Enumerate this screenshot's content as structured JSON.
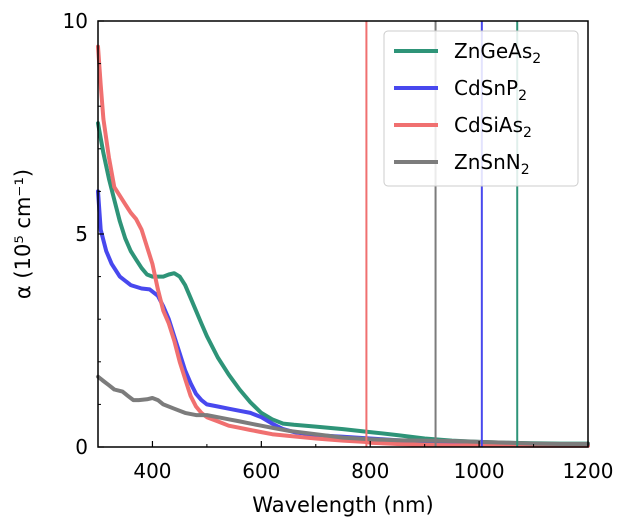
{
  "chart_data": {
    "type": "line",
    "title": "",
    "xlabel": "Wavelength (nm)",
    "ylabel": "α (10⁵ cm⁻¹)",
    "xlim": [
      300,
      1200
    ],
    "ylim": [
      0,
      10
    ],
    "xticks": [
      400,
      600,
      800,
      1000,
      1200
    ],
    "yticks": [
      0,
      5,
      10
    ],
    "grid": false,
    "legend_position": "top-right",
    "series": [
      {
        "name": "ZnGeAs",
        "subscript": "2",
        "color": "#2e9478",
        "band_edge_nm": 1070,
        "points": [
          [
            300,
            7.6
          ],
          [
            310,
            6.9
          ],
          [
            320,
            6.3
          ],
          [
            330,
            5.8
          ],
          [
            340,
            5.3
          ],
          [
            350,
            4.9
          ],
          [
            360,
            4.6
          ],
          [
            370,
            4.4
          ],
          [
            380,
            4.2
          ],
          [
            390,
            4.05
          ],
          [
            400,
            4.0
          ],
          [
            410,
            4.0
          ],
          [
            420,
            4.0
          ],
          [
            430,
            4.05
          ],
          [
            440,
            4.08
          ],
          [
            450,
            4.0
          ],
          [
            460,
            3.8
          ],
          [
            470,
            3.5
          ],
          [
            480,
            3.2
          ],
          [
            490,
            2.9
          ],
          [
            500,
            2.6
          ],
          [
            520,
            2.1
          ],
          [
            540,
            1.7
          ],
          [
            560,
            1.35
          ],
          [
            580,
            1.05
          ],
          [
            600,
            0.8
          ],
          [
            620,
            0.65
          ],
          [
            640,
            0.55
          ],
          [
            660,
            0.52
          ],
          [
            700,
            0.48
          ],
          [
            750,
            0.42
          ],
          [
            800,
            0.35
          ],
          [
            850,
            0.28
          ],
          [
            900,
            0.2
          ],
          [
            950,
            0.15
          ],
          [
            1000,
            0.12
          ],
          [
            1050,
            0.1
          ],
          [
            1100,
            0.09
          ],
          [
            1150,
            0.08
          ],
          [
            1200,
            0.08
          ]
        ]
      },
      {
        "name": "CdSnP",
        "subscript": "2",
        "color": "#4848ee",
        "band_edge_nm": 1005,
        "points": [
          [
            300,
            6.0
          ],
          [
            305,
            5.1
          ],
          [
            315,
            4.6
          ],
          [
            325,
            4.3
          ],
          [
            340,
            4.0
          ],
          [
            360,
            3.8
          ],
          [
            380,
            3.72
          ],
          [
            395,
            3.7
          ],
          [
            410,
            3.55
          ],
          [
            420,
            3.3
          ],
          [
            430,
            3.0
          ],
          [
            440,
            2.6
          ],
          [
            450,
            2.2
          ],
          [
            460,
            1.8
          ],
          [
            470,
            1.5
          ],
          [
            480,
            1.25
          ],
          [
            490,
            1.1
          ],
          [
            500,
            1.0
          ],
          [
            520,
            0.95
          ],
          [
            540,
            0.9
          ],
          [
            560,
            0.85
          ],
          [
            580,
            0.8
          ],
          [
            600,
            0.7
          ],
          [
            620,
            0.55
          ],
          [
            640,
            0.42
          ],
          [
            660,
            0.35
          ],
          [
            700,
            0.28
          ],
          [
            750,
            0.24
          ],
          [
            800,
            0.2
          ],
          [
            850,
            0.16
          ],
          [
            900,
            0.12
          ],
          [
            950,
            0.09
          ],
          [
            1000,
            0.07
          ],
          [
            1050,
            0.06
          ],
          [
            1100,
            0.05
          ],
          [
            1150,
            0.05
          ],
          [
            1200,
            0.05
          ]
        ]
      },
      {
        "name": "CdSiAs",
        "subscript": "2",
        "color": "#f07070",
        "band_edge_nm": 793,
        "points": [
          [
            300,
            9.4
          ],
          [
            305,
            8.5
          ],
          [
            310,
            7.7
          ],
          [
            320,
            6.8
          ],
          [
            330,
            6.1
          ],
          [
            340,
            5.9
          ],
          [
            350,
            5.7
          ],
          [
            360,
            5.5
          ],
          [
            370,
            5.35
          ],
          [
            380,
            5.1
          ],
          [
            390,
            4.7
          ],
          [
            400,
            4.3
          ],
          [
            410,
            3.7
          ],
          [
            420,
            3.2
          ],
          [
            430,
            2.9
          ],
          [
            440,
            2.5
          ],
          [
            450,
            2.0
          ],
          [
            460,
            1.6
          ],
          [
            470,
            1.2
          ],
          [
            480,
            0.95
          ],
          [
            490,
            0.8
          ],
          [
            500,
            0.7
          ],
          [
            520,
            0.6
          ],
          [
            540,
            0.5
          ],
          [
            560,
            0.45
          ],
          [
            580,
            0.4
          ],
          [
            600,
            0.35
          ],
          [
            620,
            0.3
          ],
          [
            650,
            0.26
          ],
          [
            700,
            0.2
          ],
          [
            750,
            0.15
          ],
          [
            790,
            0.12
          ],
          [
            800,
            0.1
          ],
          [
            850,
            0.07
          ],
          [
            900,
            0.05
          ],
          [
            950,
            0.04
          ],
          [
            1000,
            0.04
          ],
          [
            1100,
            0.03
          ],
          [
            1200,
            0.03
          ]
        ]
      },
      {
        "name": "ZnSnN",
        "subscript": "2",
        "color": "#7c7c7c",
        "band_edge_nm": 920,
        "points": [
          [
            300,
            1.65
          ],
          [
            310,
            1.55
          ],
          [
            320,
            1.45
          ],
          [
            330,
            1.35
          ],
          [
            345,
            1.3
          ],
          [
            355,
            1.2
          ],
          [
            365,
            1.1
          ],
          [
            375,
            1.1
          ],
          [
            390,
            1.12
          ],
          [
            400,
            1.15
          ],
          [
            410,
            1.1
          ],
          [
            420,
            1.0
          ],
          [
            440,
            0.9
          ],
          [
            460,
            0.8
          ],
          [
            480,
            0.75
          ],
          [
            500,
            0.75
          ],
          [
            520,
            0.7
          ],
          [
            540,
            0.65
          ],
          [
            560,
            0.6
          ],
          [
            580,
            0.55
          ],
          [
            600,
            0.5
          ],
          [
            620,
            0.45
          ],
          [
            650,
            0.38
          ],
          [
            700,
            0.3
          ],
          [
            750,
            0.22
          ],
          [
            800,
            0.18
          ],
          [
            850,
            0.16
          ],
          [
            900,
            0.15
          ],
          [
            950,
            0.14
          ],
          [
            1000,
            0.12
          ],
          [
            1050,
            0.1
          ],
          [
            1100,
            0.08
          ],
          [
            1150,
            0.07
          ],
          [
            1200,
            0.07
          ]
        ]
      }
    ]
  }
}
